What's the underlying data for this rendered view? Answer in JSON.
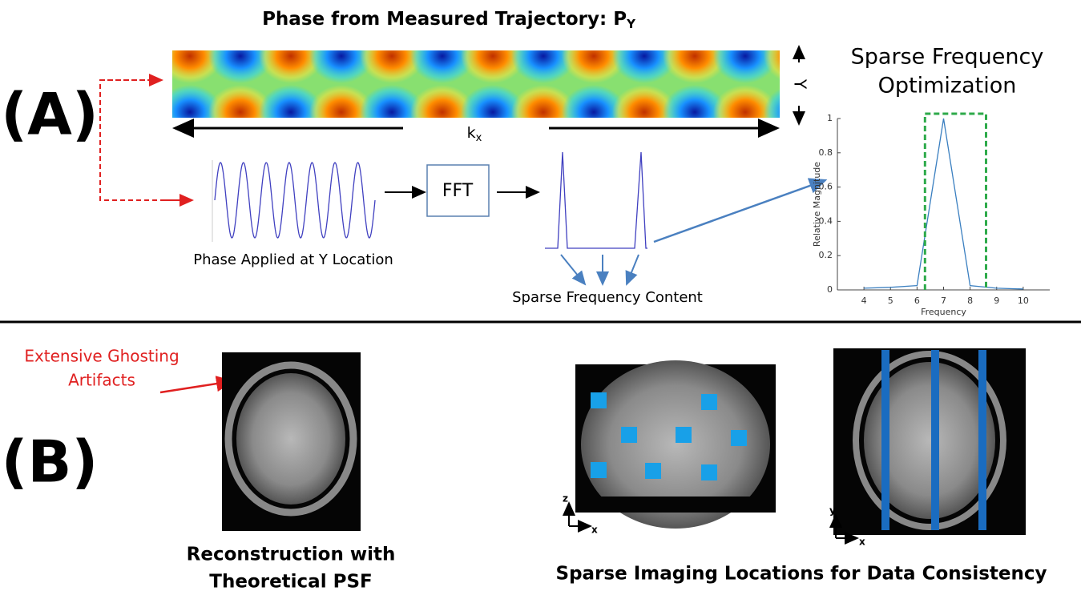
{
  "panel_a": {
    "label": "(A)",
    "title": "Phase from Measured Trajectory: P",
    "title_sub": "Y",
    "y_axis": "Y",
    "kx_label": "k",
    "kx_sub": "x",
    "fft": "FFT",
    "phase_caption": "Phase Applied at Y Location",
    "sparse_caption": "Sparse Frequency Content"
  },
  "plot": {
    "title_lines": [
      "Sparse Frequency",
      "Optimization"
    ],
    "ylabel": "Relative Magnitude",
    "xlabel": "Frequency",
    "x": [
      4,
      5,
      6,
      7,
      8,
      9,
      10
    ],
    "values": [
      0.01,
      0.015,
      0.025,
      1,
      0.025,
      0.01,
      0.005
    ],
    "xlim": [
      3,
      11
    ],
    "ylim": [
      0,
      1
    ],
    "xticks": [
      4,
      5,
      6,
      7,
      8,
      9,
      10
    ],
    "yticks": [
      0,
      0.2,
      0.4,
      0.6,
      0.8,
      1
    ],
    "window": [
      6.3,
      8.6
    ],
    "line_color": "#3a7fc0",
    "window_color": "#2eaa4a"
  },
  "panel_b": {
    "label": "(B)",
    "ghost_lines": [
      "Extensive Ghosting",
      "Artifacts"
    ],
    "recon_lines": [
      "Reconstruction with",
      "Theoretical PSF"
    ],
    "sparse_caption": "Sparse Imaging Locations for Data Consistency",
    "axes1": [
      "z",
      "x"
    ],
    "axes2": [
      "y",
      "x"
    ]
  }
}
